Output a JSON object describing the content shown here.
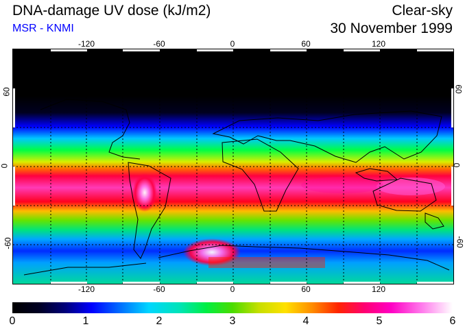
{
  "header": {
    "title": "DNA-damage UV dose (kJ/m2)",
    "source": "MSR - KNMI",
    "sky_condition": "Clear-sky",
    "date": "30 November 1999"
  },
  "map": {
    "longitude_ticks": [
      "-120",
      "-60",
      "0",
      "60",
      "120"
    ],
    "latitude_ticks_left": [
      "60",
      "0",
      "-60"
    ],
    "latitude_ticks_right": [
      "60",
      "0",
      "-60"
    ]
  },
  "colorbar": {
    "labels": [
      "0",
      "1",
      "2",
      "3",
      "4",
      "5",
      "6"
    ],
    "min": 0,
    "max": 6
  },
  "colors": {
    "title": "#000000",
    "source": "#0000ff"
  }
}
